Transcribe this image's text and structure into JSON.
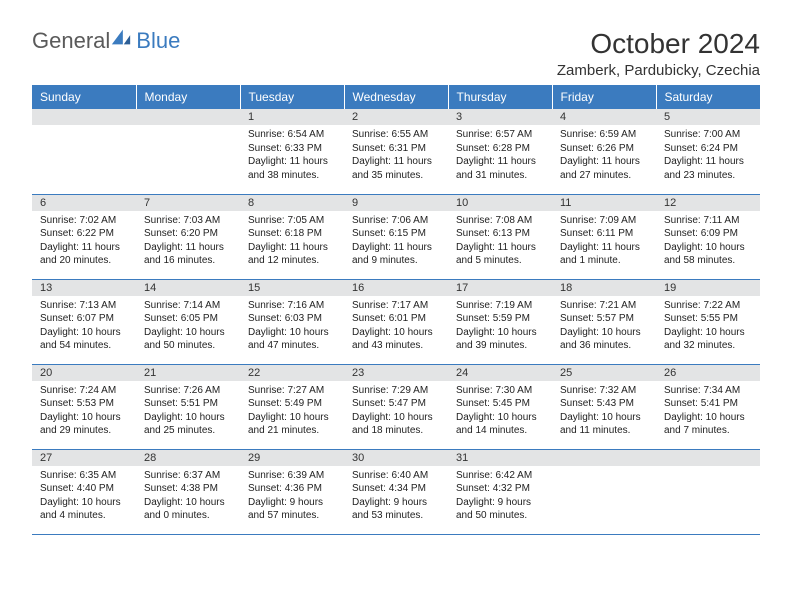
{
  "logo": {
    "general": "General",
    "blue": "Blue"
  },
  "title": {
    "month_year": "October 2024",
    "location": "Zamberk, Pardubicky, Czechia"
  },
  "colors": {
    "header_bg": "#3b7bbf",
    "header_text": "#ffffff",
    "daynum_bg": "#e3e4e5",
    "border": "#3b7bbf"
  },
  "weekdays": [
    "Sunday",
    "Monday",
    "Tuesday",
    "Wednesday",
    "Thursday",
    "Friday",
    "Saturday"
  ],
  "weeks": [
    [
      null,
      null,
      {
        "n": "1",
        "sr": "Sunrise: 6:54 AM",
        "ss": "Sunset: 6:33 PM",
        "dl": "Daylight: 11 hours and 38 minutes."
      },
      {
        "n": "2",
        "sr": "Sunrise: 6:55 AM",
        "ss": "Sunset: 6:31 PM",
        "dl": "Daylight: 11 hours and 35 minutes."
      },
      {
        "n": "3",
        "sr": "Sunrise: 6:57 AM",
        "ss": "Sunset: 6:28 PM",
        "dl": "Daylight: 11 hours and 31 minutes."
      },
      {
        "n": "4",
        "sr": "Sunrise: 6:59 AM",
        "ss": "Sunset: 6:26 PM",
        "dl": "Daylight: 11 hours and 27 minutes."
      },
      {
        "n": "5",
        "sr": "Sunrise: 7:00 AM",
        "ss": "Sunset: 6:24 PM",
        "dl": "Daylight: 11 hours and 23 minutes."
      }
    ],
    [
      {
        "n": "6",
        "sr": "Sunrise: 7:02 AM",
        "ss": "Sunset: 6:22 PM",
        "dl": "Daylight: 11 hours and 20 minutes."
      },
      {
        "n": "7",
        "sr": "Sunrise: 7:03 AM",
        "ss": "Sunset: 6:20 PM",
        "dl": "Daylight: 11 hours and 16 minutes."
      },
      {
        "n": "8",
        "sr": "Sunrise: 7:05 AM",
        "ss": "Sunset: 6:18 PM",
        "dl": "Daylight: 11 hours and 12 minutes."
      },
      {
        "n": "9",
        "sr": "Sunrise: 7:06 AM",
        "ss": "Sunset: 6:15 PM",
        "dl": "Daylight: 11 hours and 9 minutes."
      },
      {
        "n": "10",
        "sr": "Sunrise: 7:08 AM",
        "ss": "Sunset: 6:13 PM",
        "dl": "Daylight: 11 hours and 5 minutes."
      },
      {
        "n": "11",
        "sr": "Sunrise: 7:09 AM",
        "ss": "Sunset: 6:11 PM",
        "dl": "Daylight: 11 hours and 1 minute."
      },
      {
        "n": "12",
        "sr": "Sunrise: 7:11 AM",
        "ss": "Sunset: 6:09 PM",
        "dl": "Daylight: 10 hours and 58 minutes."
      }
    ],
    [
      {
        "n": "13",
        "sr": "Sunrise: 7:13 AM",
        "ss": "Sunset: 6:07 PM",
        "dl": "Daylight: 10 hours and 54 minutes."
      },
      {
        "n": "14",
        "sr": "Sunrise: 7:14 AM",
        "ss": "Sunset: 6:05 PM",
        "dl": "Daylight: 10 hours and 50 minutes."
      },
      {
        "n": "15",
        "sr": "Sunrise: 7:16 AM",
        "ss": "Sunset: 6:03 PM",
        "dl": "Daylight: 10 hours and 47 minutes."
      },
      {
        "n": "16",
        "sr": "Sunrise: 7:17 AM",
        "ss": "Sunset: 6:01 PM",
        "dl": "Daylight: 10 hours and 43 minutes."
      },
      {
        "n": "17",
        "sr": "Sunrise: 7:19 AM",
        "ss": "Sunset: 5:59 PM",
        "dl": "Daylight: 10 hours and 39 minutes."
      },
      {
        "n": "18",
        "sr": "Sunrise: 7:21 AM",
        "ss": "Sunset: 5:57 PM",
        "dl": "Daylight: 10 hours and 36 minutes."
      },
      {
        "n": "19",
        "sr": "Sunrise: 7:22 AM",
        "ss": "Sunset: 5:55 PM",
        "dl": "Daylight: 10 hours and 32 minutes."
      }
    ],
    [
      {
        "n": "20",
        "sr": "Sunrise: 7:24 AM",
        "ss": "Sunset: 5:53 PM",
        "dl": "Daylight: 10 hours and 29 minutes."
      },
      {
        "n": "21",
        "sr": "Sunrise: 7:26 AM",
        "ss": "Sunset: 5:51 PM",
        "dl": "Daylight: 10 hours and 25 minutes."
      },
      {
        "n": "22",
        "sr": "Sunrise: 7:27 AM",
        "ss": "Sunset: 5:49 PM",
        "dl": "Daylight: 10 hours and 21 minutes."
      },
      {
        "n": "23",
        "sr": "Sunrise: 7:29 AM",
        "ss": "Sunset: 5:47 PM",
        "dl": "Daylight: 10 hours and 18 minutes."
      },
      {
        "n": "24",
        "sr": "Sunrise: 7:30 AM",
        "ss": "Sunset: 5:45 PM",
        "dl": "Daylight: 10 hours and 14 minutes."
      },
      {
        "n": "25",
        "sr": "Sunrise: 7:32 AM",
        "ss": "Sunset: 5:43 PM",
        "dl": "Daylight: 10 hours and 11 minutes."
      },
      {
        "n": "26",
        "sr": "Sunrise: 7:34 AM",
        "ss": "Sunset: 5:41 PM",
        "dl": "Daylight: 10 hours and 7 minutes."
      }
    ],
    [
      {
        "n": "27",
        "sr": "Sunrise: 6:35 AM",
        "ss": "Sunset: 4:40 PM",
        "dl": "Daylight: 10 hours and 4 minutes."
      },
      {
        "n": "28",
        "sr": "Sunrise: 6:37 AM",
        "ss": "Sunset: 4:38 PM",
        "dl": "Daylight: 10 hours and 0 minutes."
      },
      {
        "n": "29",
        "sr": "Sunrise: 6:39 AM",
        "ss": "Sunset: 4:36 PM",
        "dl": "Daylight: 9 hours and 57 minutes."
      },
      {
        "n": "30",
        "sr": "Sunrise: 6:40 AM",
        "ss": "Sunset: 4:34 PM",
        "dl": "Daylight: 9 hours and 53 minutes."
      },
      {
        "n": "31",
        "sr": "Sunrise: 6:42 AM",
        "ss": "Sunset: 4:32 PM",
        "dl": "Daylight: 9 hours and 50 minutes."
      },
      null,
      null
    ]
  ]
}
